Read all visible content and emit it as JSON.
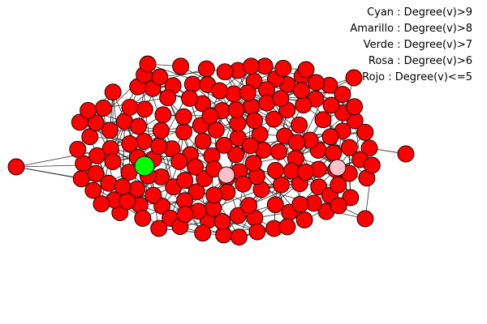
{
  "legend": [
    "Cyan : Degree(v)>9",
    "Amarillo : Degree(v)>8",
    "Verde : Degree(v)>7",
    "Rosa : Degree(v)>6",
    "Rojo : Degree(v)<=5"
  ],
  "colors": {
    "red": "#ff0000",
    "green": "#00ff00",
    "pink": "#ffc0cb",
    "edge": "#333333",
    "node_stroke": "#000000"
  },
  "graph": {
    "node_count": 180,
    "highlighted": [
      {
        "color": "green",
        "count": 1
      },
      {
        "color": "pink",
        "count": 2
      }
    ]
  }
}
